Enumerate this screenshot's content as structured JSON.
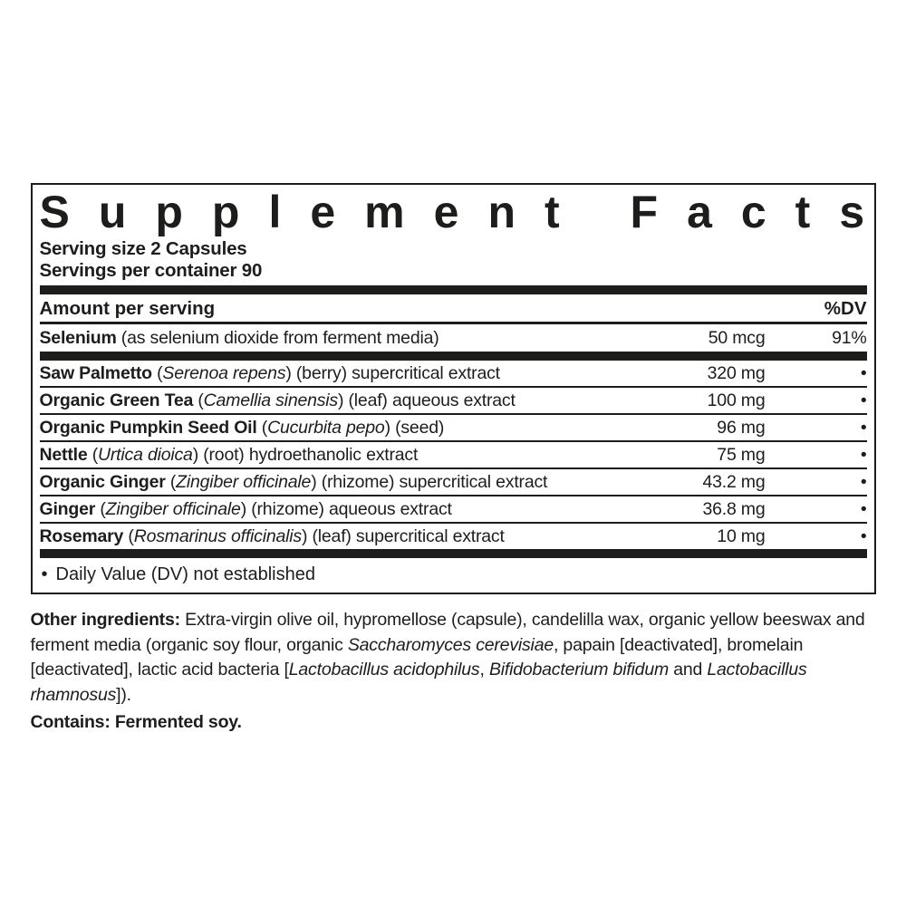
{
  "colors": {
    "ink": "#1d1d1b",
    "background": "#ffffff"
  },
  "panel": {
    "title": "Supplement Facts",
    "serving_size": "Serving size 2 Capsules",
    "servings_per_container": "Servings per container 90",
    "columns": {
      "amount_header": "Amount per serving",
      "dv_header": "%DV"
    },
    "selenium_row": {
      "name_segments": [
        {
          "t": "Selenium",
          "b": true
        },
        {
          "t": " (as selenium dioxide from ferment media)"
        }
      ],
      "amount": "50 mcg",
      "dv": "91%"
    },
    "ingredient_rows": [
      {
        "name_segments": [
          {
            "t": "Saw Palmetto",
            "b": true
          },
          {
            "t": " ("
          },
          {
            "t": "Serenoa repens",
            "i": true
          },
          {
            "t": ") (berry) supercritical extract"
          }
        ],
        "amount": "320 mg",
        "dv": "•"
      },
      {
        "name_segments": [
          {
            "t": "Organic Green Tea",
            "b": true
          },
          {
            "t": " ("
          },
          {
            "t": "Camellia sinensis",
            "i": true
          },
          {
            "t": ") (leaf) aqueous extract"
          }
        ],
        "amount": "100 mg",
        "dv": "•"
      },
      {
        "name_segments": [
          {
            "t": "Organic Pumpkin Seed Oil",
            "b": true
          },
          {
            "t": " ("
          },
          {
            "t": "Cucurbita pepo",
            "i": true
          },
          {
            "t": ") (seed)"
          }
        ],
        "amount": "96 mg",
        "dv": "•"
      },
      {
        "name_segments": [
          {
            "t": "Nettle",
            "b": true
          },
          {
            "t": " ("
          },
          {
            "t": "Urtica dioica",
            "i": true
          },
          {
            "t": ") (root) hydroethanolic extract"
          }
        ],
        "amount": "75 mg",
        "dv": "•"
      },
      {
        "name_segments": [
          {
            "t": "Organic Ginger",
            "b": true
          },
          {
            "t": " ("
          },
          {
            "t": "Zingiber officinale",
            "i": true
          },
          {
            "t": ") (rhizome) supercritical extract"
          }
        ],
        "amount": "43.2 mg",
        "dv": "•"
      },
      {
        "name_segments": [
          {
            "t": "Ginger",
            "b": true
          },
          {
            "t": " ("
          },
          {
            "t": "Zingiber officinale",
            "i": true
          },
          {
            "t": ") (rhizome) aqueous extract"
          }
        ],
        "amount": "36.8 mg",
        "dv": "•"
      },
      {
        "name_segments": [
          {
            "t": "Rosemary",
            "b": true
          },
          {
            "t": " ("
          },
          {
            "t": "Rosmarinus officinalis",
            "i": true
          },
          {
            "t": ") (leaf) supercritical extract"
          }
        ],
        "amount": "10 mg",
        "dv": "•"
      }
    ],
    "footnote": {
      "bullet": "•",
      "text": "Daily Value (DV) not established"
    }
  },
  "other_ingredients": {
    "segments": [
      {
        "t": "Other ingredients: ",
        "b": true
      },
      {
        "t": "Extra-virgin olive oil, hypromellose (capsule), candelilla wax, organic yellow beeswax and ferment media (organic soy flour, organic "
      },
      {
        "t": "Saccharomyces cerevisiae",
        "i": true
      },
      {
        "t": ", papain [deactivated], bromelain [deactivated], lactic acid bacteria ["
      },
      {
        "t": "Lactobacillus acidophilus",
        "i": true
      },
      {
        "t": ", "
      },
      {
        "t": "Bifidobacterium bifidum",
        "i": true
      },
      {
        "t": " and "
      },
      {
        "t": "Lactobacillus rhamnosus",
        "i": true
      },
      {
        "t": "])."
      }
    ]
  },
  "contains": {
    "segments": [
      {
        "t": "Contains: Fermented soy.",
        "b": true
      }
    ]
  }
}
